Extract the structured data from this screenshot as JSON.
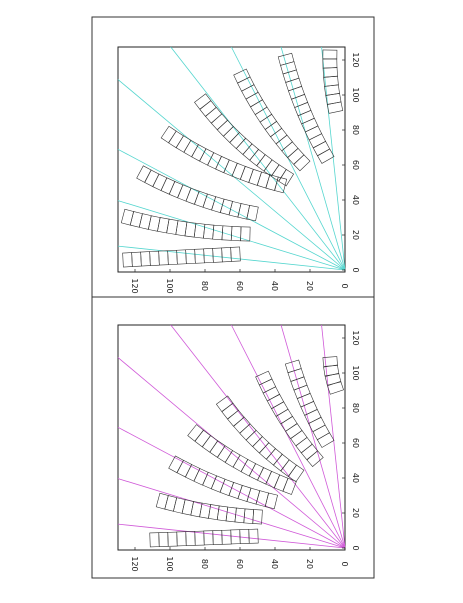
{
  "panels": [
    {
      "xticks": [
        0,
        20,
        40,
        60,
        80,
        100,
        120
      ],
      "yticks": [
        0,
        20,
        40,
        60,
        80,
        100,
        120
      ],
      "line_color": "#56d6cf"
    },
    {
      "xticks": [
        0,
        20,
        40,
        60,
        80,
        100,
        120
      ],
      "yticks": [
        0,
        20,
        40,
        60,
        80,
        100,
        120
      ],
      "line_color": "#d05ad8"
    }
  ]
}
